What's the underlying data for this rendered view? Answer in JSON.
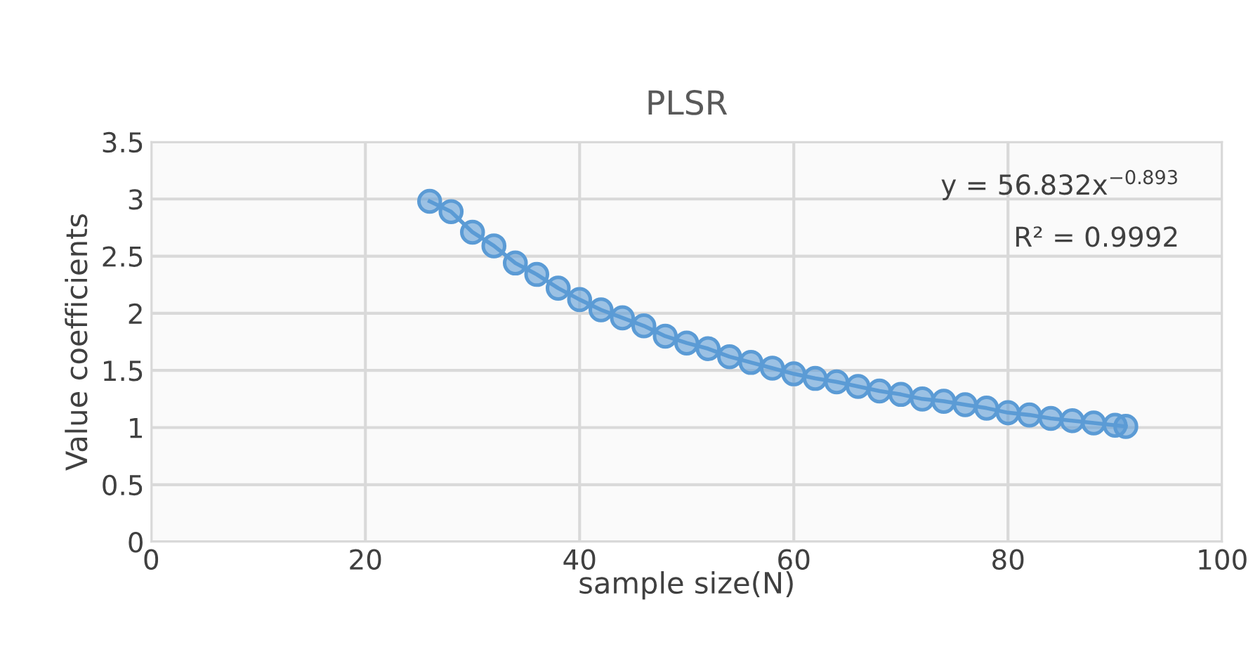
{
  "chart_data": {
    "type": "line",
    "title": "PLSR",
    "xlabel": "sample size(N)",
    "ylabel": "Value coefficients",
    "x": [
      26,
      28,
      30,
      32,
      34,
      36,
      38,
      40,
      42,
      44,
      46,
      48,
      50,
      52,
      54,
      56,
      58,
      60,
      62,
      64,
      66,
      68,
      70,
      72,
      74,
      76,
      78,
      80,
      82,
      84,
      86,
      88,
      90,
      91
    ],
    "series": [
      {
        "color": "#5b9bd5",
        "values": [
          2.98,
          2.89,
          2.71,
          2.59,
          2.44,
          2.34,
          2.22,
          2.12,
          2.03,
          1.96,
          1.89,
          1.8,
          1.74,
          1.69,
          1.62,
          1.57,
          1.52,
          1.47,
          1.43,
          1.4,
          1.36,
          1.32,
          1.29,
          1.25,
          1.23,
          1.2,
          1.17,
          1.13,
          1.11,
          1.08,
          1.06,
          1.04,
          1.02,
          1.01
        ]
      }
    ],
    "xlim": [
      0,
      100
    ],
    "xticks": [
      0,
      20,
      40,
      60,
      80,
      100
    ],
    "ylim": [
      0,
      3.5
    ],
    "yticks": [
      0,
      0.5,
      1,
      1.5,
      2,
      2.5,
      3,
      3.5
    ],
    "annotations": [
      "y = 56.832x$^{−0.893}$",
      "R² = 0.9992"
    ],
    "grid": true,
    "marker": "circle",
    "line_style": "solid"
  }
}
